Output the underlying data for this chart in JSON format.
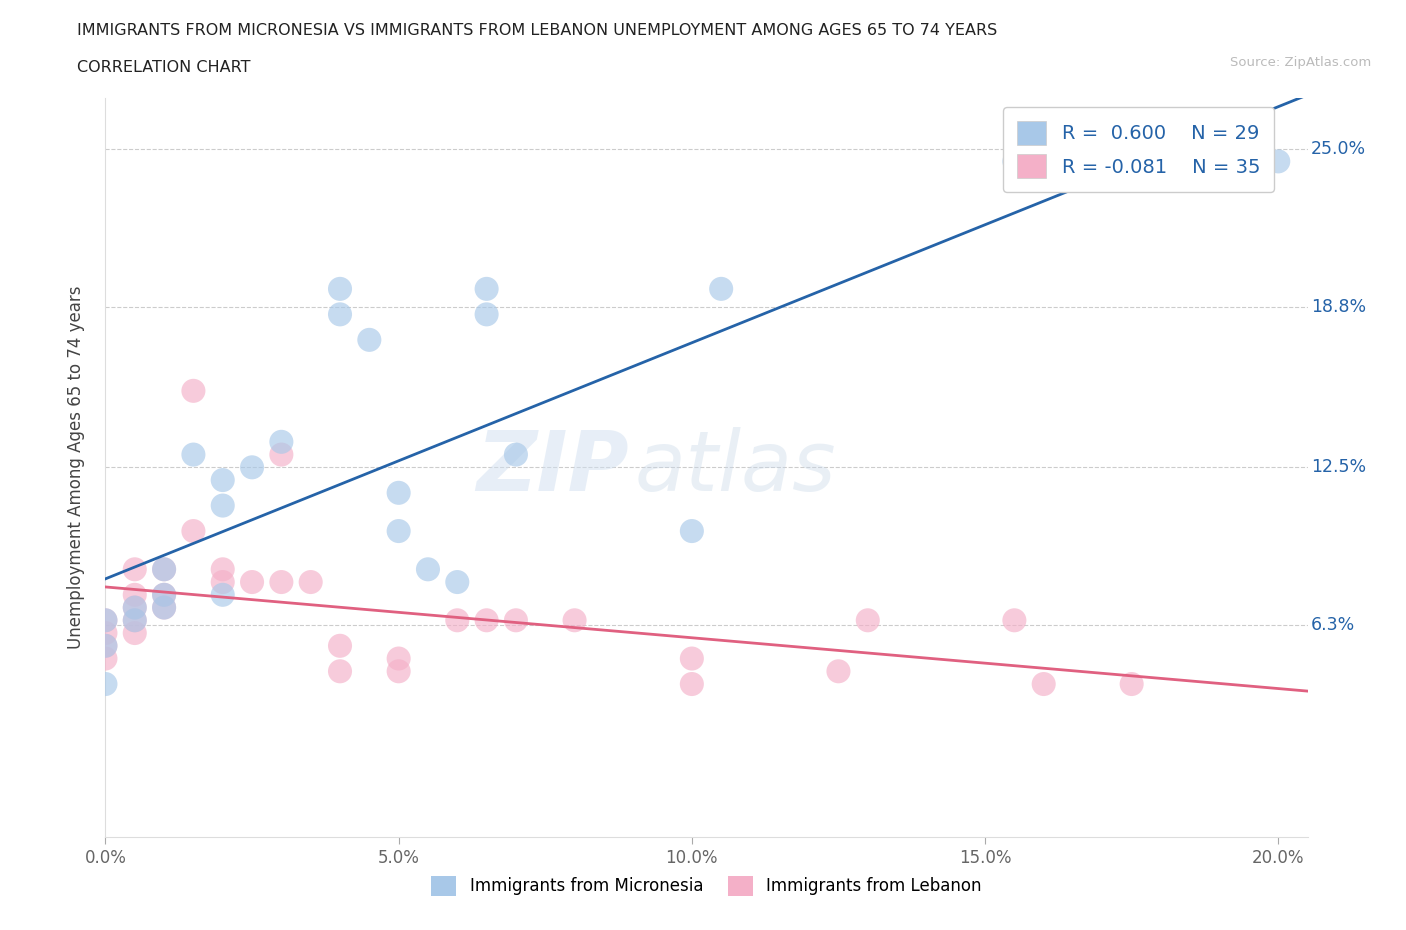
{
  "title_line1": "IMMIGRANTS FROM MICRONESIA VS IMMIGRANTS FROM LEBANON UNEMPLOYMENT AMONG AGES 65 TO 74 YEARS",
  "title_line2": "CORRELATION CHART",
  "source_text": "Source: ZipAtlas.com",
  "ylabel": "Unemployment Among Ages 65 to 74 years",
  "xlim": [
    0.0,
    0.205
  ],
  "ylim": [
    -0.02,
    0.27
  ],
  "xticks": [
    0.0,
    0.05,
    0.1,
    0.15,
    0.2
  ],
  "xtick_labels": [
    "0.0%",
    "5.0%",
    "10.0%",
    "15.0%",
    "20.0%"
  ],
  "ytick_labels": [
    "6.3%",
    "12.5%",
    "18.8%",
    "25.0%"
  ],
  "ytick_values": [
    0.063,
    0.125,
    0.188,
    0.25
  ],
  "blue_color": "#a8c8e8",
  "pink_color": "#f4b0c8",
  "blue_line_color": "#2563a8",
  "pink_line_color": "#e06080",
  "watermark_zip": "ZIP",
  "watermark_atlas": "atlas",
  "blue_points_x": [
    0.0,
    0.0,
    0.0,
    0.005,
    0.005,
    0.01,
    0.01,
    0.01,
    0.015,
    0.02,
    0.02,
    0.02,
    0.025,
    0.03,
    0.04,
    0.04,
    0.045,
    0.05,
    0.05,
    0.055,
    0.06,
    0.065,
    0.065,
    0.07,
    0.1,
    0.105,
    0.155,
    0.17,
    0.2
  ],
  "blue_points_y": [
    0.065,
    0.055,
    0.04,
    0.07,
    0.065,
    0.085,
    0.075,
    0.07,
    0.13,
    0.12,
    0.11,
    0.075,
    0.125,
    0.135,
    0.195,
    0.185,
    0.175,
    0.115,
    0.1,
    0.085,
    0.08,
    0.195,
    0.185,
    0.13,
    0.1,
    0.195,
    0.245,
    0.24,
    0.245
  ],
  "pink_points_x": [
    0.0,
    0.0,
    0.0,
    0.0,
    0.005,
    0.005,
    0.005,
    0.005,
    0.005,
    0.01,
    0.01,
    0.01,
    0.015,
    0.015,
    0.02,
    0.02,
    0.025,
    0.03,
    0.03,
    0.035,
    0.04,
    0.04,
    0.05,
    0.05,
    0.06,
    0.065,
    0.07,
    0.08,
    0.155,
    0.16,
    0.175,
    0.1,
    0.1,
    0.125,
    0.13
  ],
  "pink_points_y": [
    0.065,
    0.06,
    0.055,
    0.05,
    0.085,
    0.075,
    0.07,
    0.065,
    0.06,
    0.085,
    0.075,
    0.07,
    0.155,
    0.1,
    0.085,
    0.08,
    0.08,
    0.08,
    0.13,
    0.08,
    0.055,
    0.045,
    0.05,
    0.045,
    0.065,
    0.065,
    0.065,
    0.065,
    0.065,
    0.04,
    0.04,
    0.04,
    0.05,
    0.045,
    0.065
  ]
}
